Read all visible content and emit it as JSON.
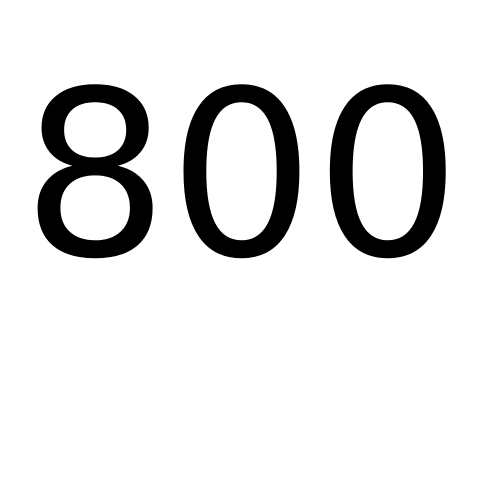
{
  "display": {
    "value": "800"
  },
  "colors": {
    "text": "#000000",
    "background": "#ffffff"
  }
}
